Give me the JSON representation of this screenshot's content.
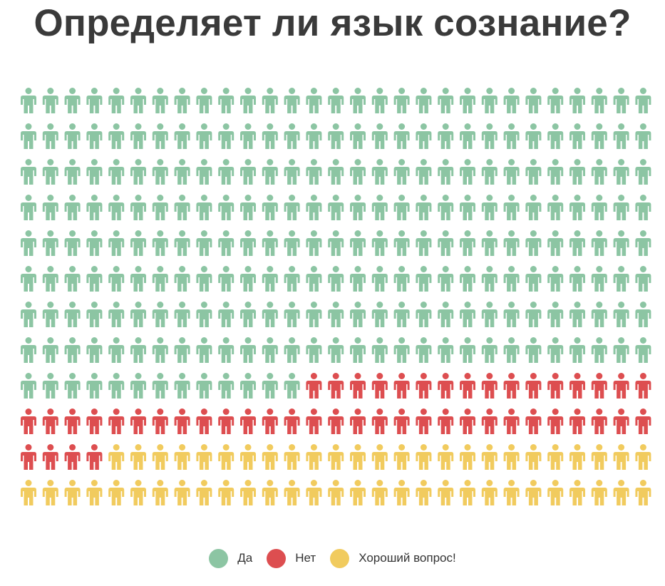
{
  "chart_data": {
    "type": "pictogram",
    "title": "Определяет ли язык сознание?",
    "columns": 29,
    "rows": 12,
    "series": [
      {
        "name": "Да",
        "value": 245,
        "color": "#8cc5a3"
      },
      {
        "name": "Нет",
        "value": 49,
        "color": "#dd4e50"
      },
      {
        "name": "Хороший вопрос!",
        "value": 54,
        "color": "#f1cb5e"
      }
    ]
  }
}
